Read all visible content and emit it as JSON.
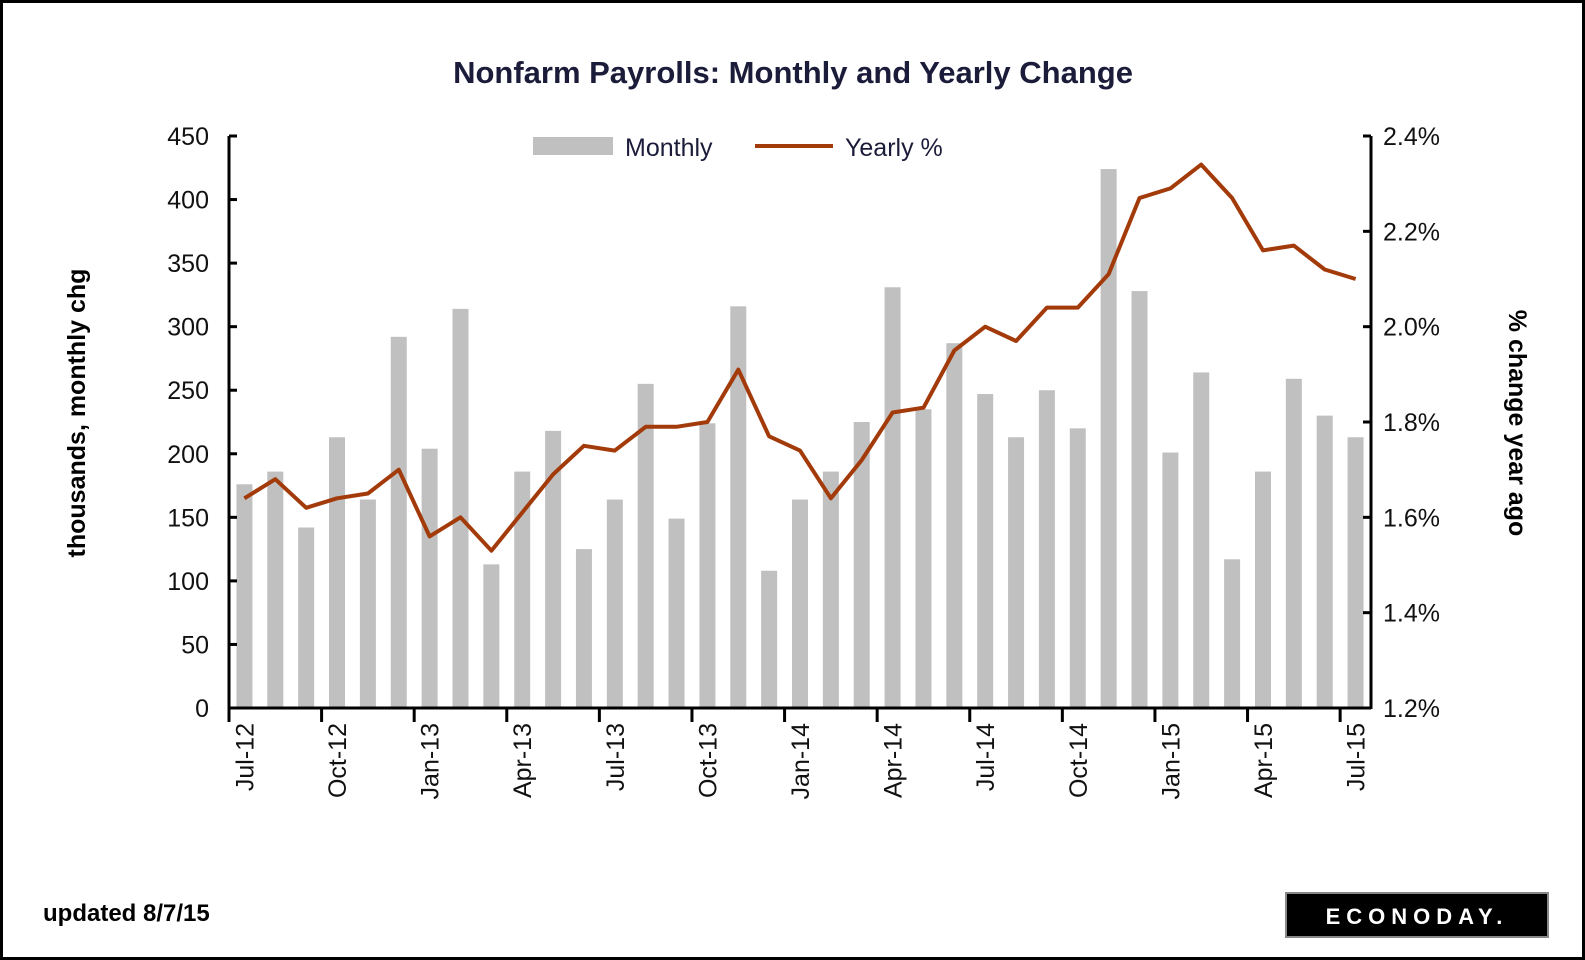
{
  "chart_data": {
    "type": "bar+line",
    "title": "Nonfarm Payrolls: Monthly and Yearly Change",
    "categories": [
      "Jul-12",
      "Aug-12",
      "Sep-12",
      "Oct-12",
      "Nov-12",
      "Dec-12",
      "Jan-13",
      "Feb-13",
      "Mar-13",
      "Apr-13",
      "May-13",
      "Jun-13",
      "Jul-13",
      "Aug-13",
      "Sep-13",
      "Oct-13",
      "Nov-13",
      "Dec-13",
      "Jan-14",
      "Feb-14",
      "Mar-14",
      "Apr-14",
      "May-14",
      "Jun-14",
      "Jul-14",
      "Aug-14",
      "Sep-14",
      "Oct-14",
      "Nov-14",
      "Dec-14",
      "Jan-15",
      "Feb-15",
      "Mar-15",
      "Apr-15",
      "May-15",
      "Jun-15",
      "Jul-15"
    ],
    "x_tick_labels": [
      "Jul-12",
      "Oct-12",
      "Jan-13",
      "Apr-13",
      "Jul-13",
      "Oct-13",
      "Jan-14",
      "Apr-14",
      "Jul-14",
      "Oct-14",
      "Jan-15",
      "Apr-15",
      "Jul-15"
    ],
    "series": [
      {
        "name": "Monthly",
        "type": "bar",
        "axis": "left",
        "color": "#c0c0c0",
        "values": [
          176,
          186,
          142,
          213,
          164,
          292,
          204,
          314,
          113,
          186,
          218,
          125,
          164,
          255,
          149,
          224,
          316,
          108,
          164,
          186,
          225,
          331,
          235,
          287,
          247,
          213,
          250,
          220,
          424,
          328,
          201,
          264,
          117,
          186,
          259,
          230,
          213
        ]
      },
      {
        "name": "Yearly %",
        "type": "line",
        "axis": "right",
        "color": "#a33a0a",
        "values": [
          1.64,
          1.68,
          1.62,
          1.64,
          1.65,
          1.7,
          1.56,
          1.6,
          1.53,
          1.61,
          1.69,
          1.75,
          1.74,
          1.79,
          1.79,
          1.8,
          1.91,
          1.77,
          1.74,
          1.64,
          1.72,
          1.82,
          1.83,
          1.95,
          2.0,
          1.97,
          2.04,
          2.04,
          2.11,
          2.27,
          2.29,
          2.34,
          2.27,
          2.16,
          2.17,
          2.12,
          2.1
        ]
      }
    ],
    "ylabel": "thousands, monthly chg",
    "ylim": [
      0,
      450
    ],
    "y_ticks": [
      "0",
      "50",
      "100",
      "150",
      "200",
      "250",
      "300",
      "350",
      "400",
      "450"
    ],
    "y2label": "% change year ago",
    "y2lim": [
      1.2,
      2.4
    ],
    "y2_ticks": [
      "1.2%",
      "1.4%",
      "1.6%",
      "1.8%",
      "2.0%",
      "2.2%",
      "2.4%"
    ],
    "grid": false,
    "legend_position": "top-center"
  },
  "footer": {
    "updated": "updated 8/7/15",
    "logo": "ECONODAY."
  }
}
